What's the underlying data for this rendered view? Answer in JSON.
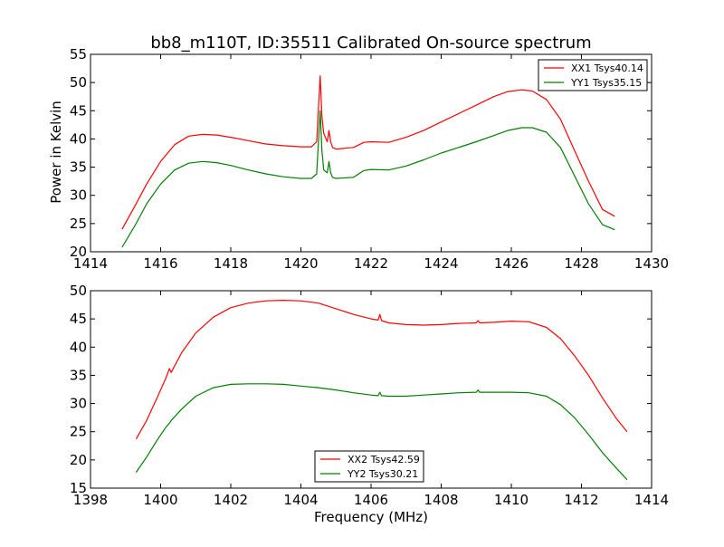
{
  "chart_data": [
    {
      "type": "line",
      "title": "bb8_m110T, ID:35511 Calibrated On-source spectrum",
      "xlabel": "",
      "ylabel": "Power in Kelvin",
      "xlim": [
        1414,
        1430
      ],
      "ylim": [
        20,
        55
      ],
      "xticks": [
        1414,
        1416,
        1418,
        1420,
        1422,
        1424,
        1426,
        1428,
        1430
      ],
      "yticks": [
        20,
        25,
        30,
        35,
        40,
        45,
        50,
        55
      ],
      "grid": false,
      "legend_position": "top-right",
      "series": [
        {
          "name": "XX1 Tsys40.14",
          "color": "#ff0000",
          "x": [
            1414.9,
            1415.3,
            1415.6,
            1416.0,
            1416.4,
            1416.8,
            1417.2,
            1417.6,
            1418.0,
            1418.5,
            1419.0,
            1419.5,
            1420.0,
            1420.3,
            1420.45,
            1420.55,
            1420.6,
            1420.65,
            1420.75,
            1420.8,
            1420.85,
            1420.9,
            1421.0,
            1421.5,
            1421.8,
            1422.0,
            1422.5,
            1423.0,
            1423.5,
            1424.0,
            1424.5,
            1425.0,
            1425.5,
            1425.9,
            1426.3,
            1426.6,
            1427.0,
            1427.4,
            1427.8,
            1428.2,
            1428.6,
            1428.95
          ],
          "values": [
            24.0,
            28.5,
            32.0,
            36.0,
            39.0,
            40.5,
            40.8,
            40.7,
            40.3,
            39.7,
            39.1,
            38.8,
            38.6,
            38.6,
            39.5,
            51.2,
            44.0,
            41.0,
            39.5,
            41.5,
            39.5,
            38.5,
            38.2,
            38.5,
            39.4,
            39.5,
            39.4,
            40.3,
            41.5,
            43.0,
            44.5,
            46.0,
            47.5,
            48.4,
            48.7,
            48.5,
            47.0,
            43.5,
            38.0,
            32.5,
            27.5,
            26.3
          ]
        },
        {
          "name": "YY1 Tsys35.15",
          "color": "#008000",
          "x": [
            1414.9,
            1415.3,
            1415.6,
            1416.0,
            1416.4,
            1416.8,
            1417.2,
            1417.6,
            1418.0,
            1418.5,
            1419.0,
            1419.5,
            1420.0,
            1420.3,
            1420.45,
            1420.55,
            1420.6,
            1420.65,
            1420.75,
            1420.8,
            1420.85,
            1420.9,
            1421.0,
            1421.5,
            1421.8,
            1422.0,
            1422.5,
            1423.0,
            1423.5,
            1424.0,
            1424.5,
            1425.0,
            1425.5,
            1425.9,
            1426.3,
            1426.6,
            1427.0,
            1427.4,
            1427.8,
            1428.2,
            1428.6,
            1428.95
          ],
          "values": [
            20.8,
            25.0,
            28.5,
            32.0,
            34.5,
            35.7,
            36.0,
            35.8,
            35.3,
            34.5,
            33.8,
            33.3,
            33.0,
            33.0,
            33.8,
            45.0,
            38.0,
            34.5,
            34.0,
            36.0,
            34.0,
            33.2,
            33.0,
            33.2,
            34.4,
            34.6,
            34.5,
            35.2,
            36.3,
            37.5,
            38.5,
            39.5,
            40.6,
            41.5,
            42.0,
            42.0,
            41.2,
            38.5,
            33.5,
            28.5,
            24.8,
            23.9
          ]
        }
      ]
    },
    {
      "type": "line",
      "title": "",
      "xlabel": "Frequency (MHz)",
      "ylabel": "",
      "xlim": [
        1398,
        1414
      ],
      "ylim": [
        15,
        50
      ],
      "xticks": [
        1398,
        1400,
        1402,
        1404,
        1406,
        1408,
        1410,
        1412,
        1414
      ],
      "yticks": [
        15,
        20,
        25,
        30,
        35,
        40,
        45,
        50
      ],
      "grid": false,
      "legend_position": "bottom-center",
      "series": [
        {
          "name": "XX2 Tsys42.59",
          "color": "#ff0000",
          "x": [
            1399.3,
            1399.6,
            1399.9,
            1400.15,
            1400.25,
            1400.3,
            1400.6,
            1401.0,
            1401.5,
            1402.0,
            1402.5,
            1403.0,
            1403.5,
            1404.0,
            1404.5,
            1405.0,
            1405.5,
            1406.0,
            1406.2,
            1406.25,
            1406.3,
            1406.5,
            1407.0,
            1407.5,
            1408.0,
            1408.5,
            1409.0,
            1409.05,
            1409.1,
            1409.5,
            1410.0,
            1410.5,
            1411.0,
            1411.4,
            1411.8,
            1412.2,
            1412.6,
            1413.0,
            1413.3
          ],
          "values": [
            23.7,
            27.0,
            31.0,
            34.5,
            36.2,
            35.5,
            39.0,
            42.5,
            45.3,
            47.0,
            47.8,
            48.2,
            48.3,
            48.2,
            47.8,
            46.8,
            45.8,
            45.0,
            44.8,
            45.8,
            44.7,
            44.3,
            44.0,
            43.9,
            44.0,
            44.2,
            44.3,
            44.7,
            44.3,
            44.4,
            44.6,
            44.5,
            43.5,
            41.5,
            38.5,
            35.0,
            31.0,
            27.3,
            25.0
          ]
        },
        {
          "name": "YY2 Tsys30.21",
          "color": "#008000",
          "x": [
            1399.3,
            1399.6,
            1399.9,
            1400.15,
            1400.25,
            1400.3,
            1400.6,
            1401.0,
            1401.5,
            1402.0,
            1402.5,
            1403.0,
            1403.5,
            1404.0,
            1404.5,
            1405.0,
            1405.5,
            1406.0,
            1406.2,
            1406.25,
            1406.3,
            1406.5,
            1407.0,
            1407.5,
            1408.0,
            1408.5,
            1409.0,
            1409.05,
            1409.1,
            1409.5,
            1410.0,
            1410.5,
            1411.0,
            1411.4,
            1411.8,
            1412.2,
            1412.6,
            1413.0,
            1413.3
          ],
          "values": [
            17.8,
            20.5,
            23.5,
            25.8,
            26.5,
            27.0,
            29.0,
            31.3,
            32.8,
            33.4,
            33.5,
            33.5,
            33.4,
            33.1,
            32.8,
            32.4,
            31.9,
            31.5,
            31.4,
            32.0,
            31.4,
            31.3,
            31.3,
            31.5,
            31.7,
            31.9,
            32.0,
            32.4,
            32.0,
            32.0,
            32.0,
            31.9,
            31.3,
            29.8,
            27.5,
            24.5,
            21.3,
            18.5,
            16.5
          ]
        }
      ]
    }
  ]
}
